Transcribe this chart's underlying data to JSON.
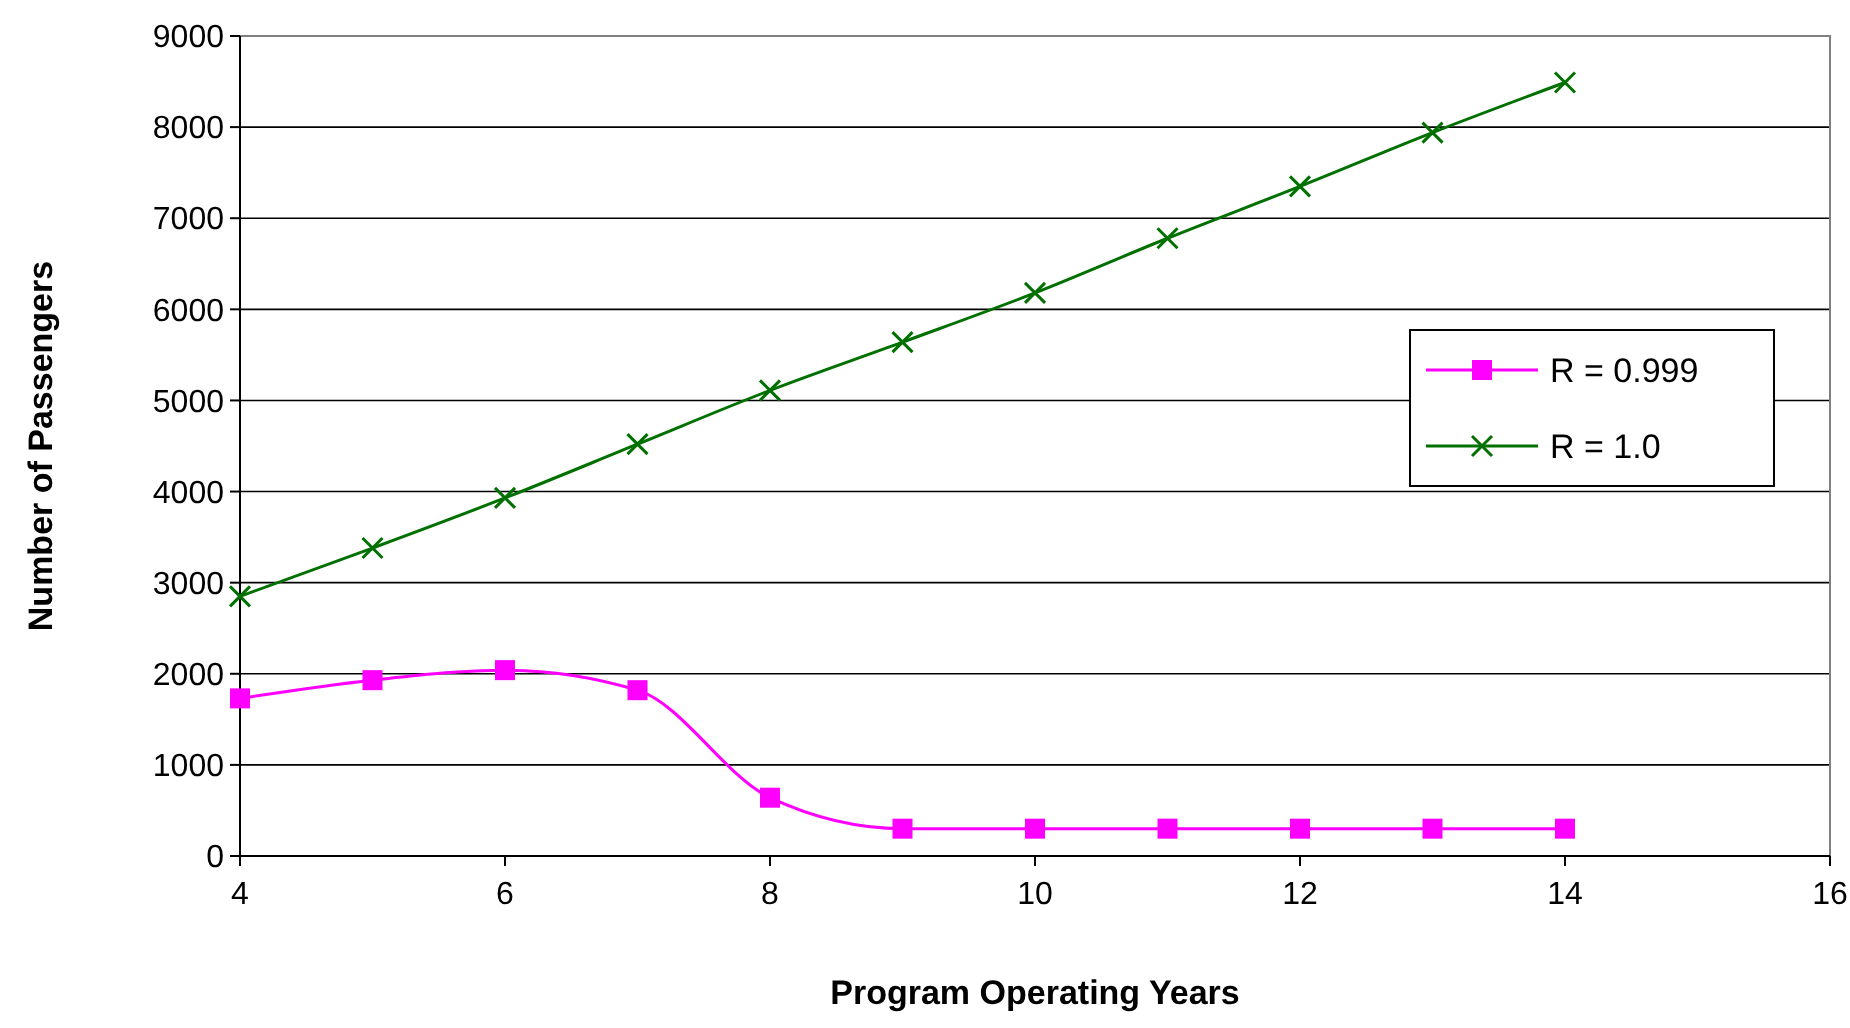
{
  "chart_data": {
    "type": "line",
    "xlabel": "Program Operating Years",
    "ylabel": "Number of Passengers",
    "x": [
      4,
      5,
      6,
      7,
      8,
      9,
      10,
      11,
      12,
      13,
      14
    ],
    "series": [
      {
        "name": "R = 0.999",
        "color": "#ff00ff",
        "marker": "square",
        "values": [
          1730,
          1930,
          2040,
          1820,
          640,
          300,
          300,
          300,
          300,
          300,
          300
        ]
      },
      {
        "name": "R = 1.0",
        "color": "#007000",
        "marker": "cross",
        "values": [
          2850,
          3380,
          3930,
          4520,
          5110,
          5640,
          6180,
          6780,
          7350,
          7940,
          8490
        ]
      }
    ],
    "xlim": [
      4,
      16
    ],
    "xticks": [
      4,
      6,
      8,
      10,
      12,
      14,
      16
    ],
    "ylim": [
      0,
      9000
    ],
    "yticks": [
      0,
      1000,
      2000,
      3000,
      4000,
      5000,
      6000,
      7000,
      8000,
      9000
    ],
    "grid": "y",
    "legend": "right"
  }
}
